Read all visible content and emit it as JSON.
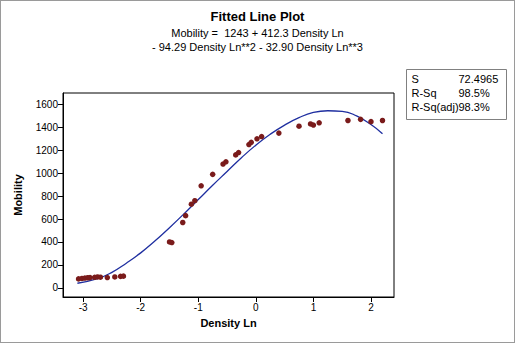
{
  "chart_data": {
    "type": "scatter",
    "title": "Fitted Line Plot",
    "subtitle": [
      "Mobility =  1243 + 412.3 Density Ln",
      "- 94.29 Density Ln**2 - 32.90 Density Ln**3"
    ],
    "x_label": "Density Ln",
    "y_label": "Mobility",
    "xlim": [
      -3.35,
      2.4
    ],
    "xticks": [
      -3,
      -2,
      -1,
      0,
      1,
      2
    ],
    "ylim": [
      -80,
      1700
    ],
    "yticks": [
      0,
      200,
      400,
      600,
      800,
      1000,
      1200,
      1400,
      1600
    ],
    "grid": false,
    "stats": [
      {
        "name": "S",
        "value": "72.4965"
      },
      {
        "name": "R-Sq",
        "value": "98.5%"
      },
      {
        "name": "R-Sq(adj)",
        "value": "98.3%"
      }
    ],
    "series": [
      {
        "type": "scatter",
        "color": "#7a1b1b",
        "marker": "circle",
        "x": [
          -3.08,
          -3.02,
          -2.97,
          -2.92,
          -2.88,
          -2.8,
          -2.75,
          -2.7,
          -2.58,
          -2.45,
          -2.35,
          -2.3,
          -1.5,
          -1.46,
          -1.27,
          -1.22,
          -1.12,
          -1.06,
          -0.95,
          -0.75,
          -0.57,
          -0.52,
          -0.35,
          -0.3,
          -0.12,
          -0.08,
          0.02,
          0.1,
          0.4,
          0.75,
          0.95,
          1.0,
          1.1,
          1.6,
          1.82,
          2.0,
          2.2
        ],
        "values": [
          78,
          82,
          85,
          88,
          90,
          92,
          95,
          93,
          90,
          95,
          100,
          102,
          400,
          395,
          570,
          630,
          730,
          760,
          890,
          990,
          1080,
          1100,
          1160,
          1180,
          1250,
          1270,
          1300,
          1320,
          1350,
          1410,
          1430,
          1420,
          1440,
          1460,
          1470,
          1450,
          1460
        ]
      },
      {
        "type": "line",
        "color": "#1f2fa0",
        "line_style": "solid",
        "x": [
          -3.1,
          -2.75,
          -2.5,
          -2.25,
          -2,
          -1.75,
          -1.5,
          -1.25,
          -1,
          -0.75,
          -0.5,
          -0.25,
          0,
          0.25,
          0.5,
          0.75,
          1,
          1.25,
          1.5,
          1.75,
          2,
          2.2
        ],
        "values": [
          40,
          80,
          135,
          215,
          305,
          410,
          525,
          645,
          770,
          895,
          1015,
          1135,
          1245,
          1340,
          1420,
          1485,
          1530,
          1545,
          1540,
          1500,
          1425,
          1345
        ]
      }
    ]
  }
}
